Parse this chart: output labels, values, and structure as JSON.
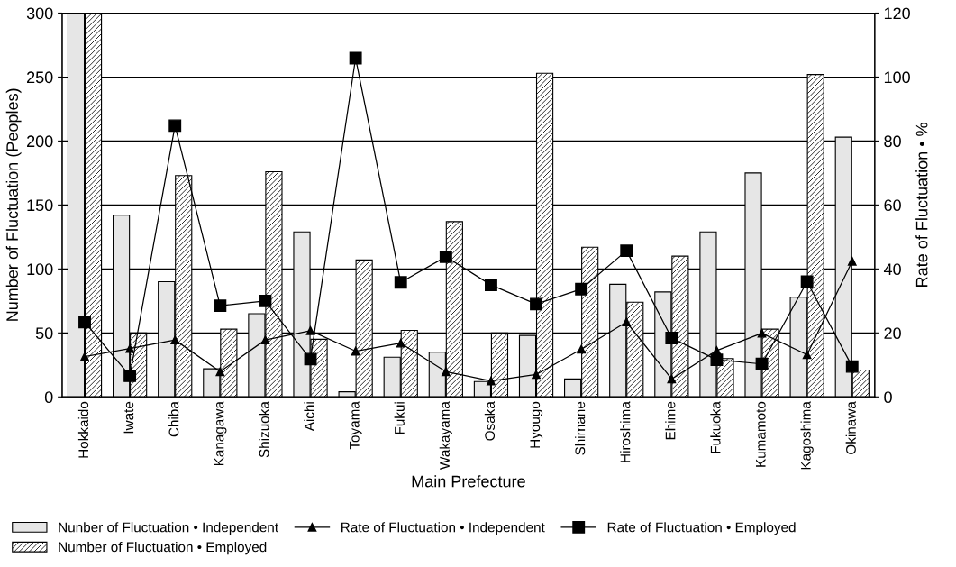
{
  "chart_data": {
    "type": "bar",
    "xlabel": "Main Prefecture",
    "ylabel": "Number of Fluctuation (Peoples)",
    "y2label": "Rate of Fluctuation • %",
    "categories": [
      "Hokkaido",
      "Iwate",
      "Chiba",
      "Kanagawa",
      "Shizuoka",
      "Aichi",
      "Toyama",
      "Fukui",
      "Wakayama",
      "Osaka",
      "Hyougo",
      "Shimane",
      "Hiroshima",
      "Ehime",
      "Fukuoka",
      "Kumamoto",
      "Kagoshima",
      "Okinawa"
    ],
    "series": [
      {
        "name": "Nunber of Fluctuation • Independent",
        "color": "#e6e6e6",
        "values": [
          300,
          142,
          90,
          22,
          65,
          129,
          4,
          31,
          35,
          12,
          48,
          14,
          88,
          82,
          129,
          175,
          78,
          203
        ]
      },
      {
        "name": "Number of Fluctuation • Employed",
        "color": "#000000",
        "values": [
          300,
          50,
          173,
          53,
          176,
          45,
          107,
          52,
          137,
          50,
          253,
          117,
          74,
          110,
          30,
          53,
          252,
          21
        ]
      },
      {
        "name": "Rate of Fluctuation • Independent",
        "type": "line",
        "axis": "y2",
        "marker": "triangle",
        "color": "#000000",
        "values": [
          12.6,
          15.1,
          17.8,
          7.9,
          17.8,
          20.7,
          14.3,
          16.8,
          7.9,
          5,
          7,
          14.9,
          23.4,
          5.6,
          14.5,
          19.9,
          13.2,
          42.4
        ]
      },
      {
        "name": "Rate of Fluctuation • Employed",
        "type": "line",
        "axis": "y2",
        "marker": "square",
        "color": "#000000",
        "values": [
          23.4,
          6.6,
          84.8,
          28.5,
          30,
          11.8,
          105.9,
          35.8,
          43.8,
          35,
          29,
          33.7,
          45.7,
          18.4,
          11.6,
          10.3,
          36,
          9.5
        ]
      }
    ],
    "ylim": [
      0,
      300
    ],
    "yticks": [
      0,
      50,
      100,
      150,
      200,
      250,
      300
    ],
    "y2lim": [
      0,
      120
    ],
    "y2ticks": [
      0,
      20,
      40,
      60,
      80,
      100,
      120
    ],
    "grid": "y",
    "legend": "bottom",
    "line_style": "solid"
  }
}
